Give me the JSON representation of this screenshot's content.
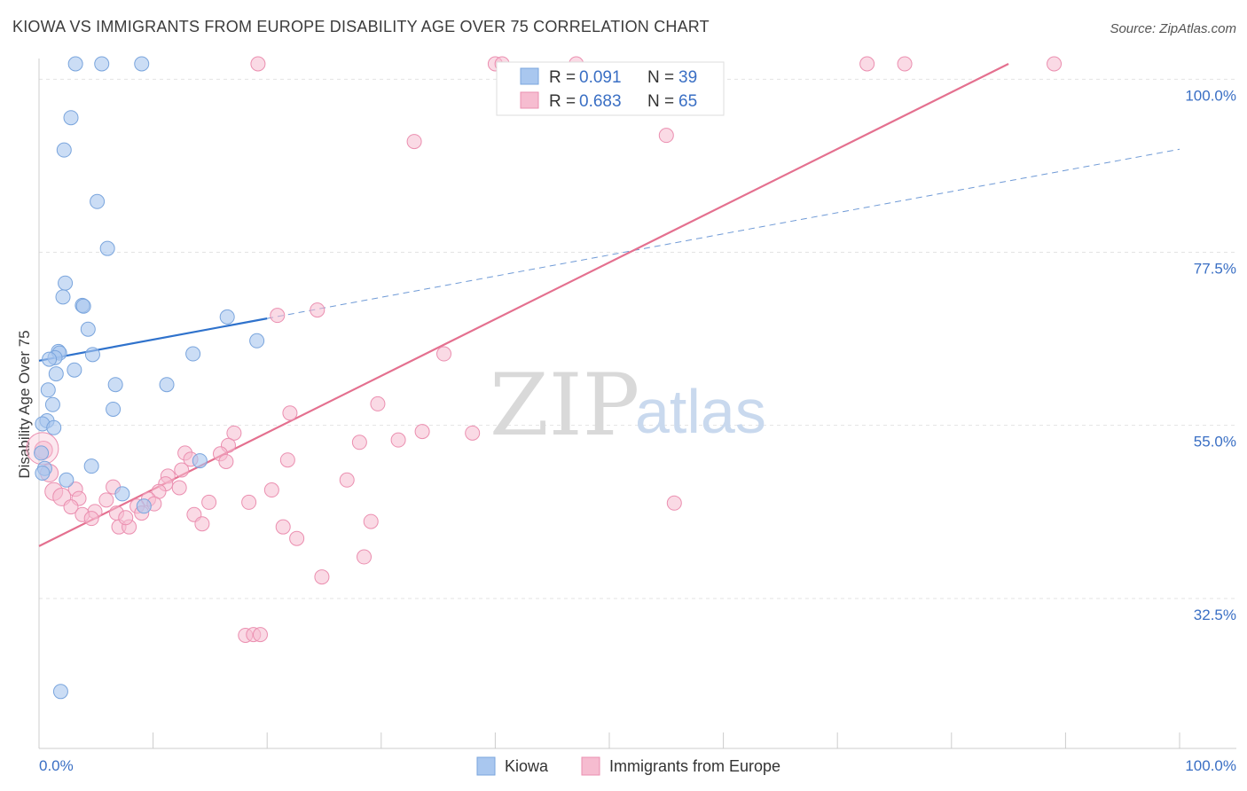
{
  "chart_data": {
    "type": "scatter",
    "title": "KIOWA VS IMMIGRANTS FROM EUROPE DISABILITY AGE OVER 75 CORRELATION CHART",
    "source": "Source: ZipAtlas.com",
    "xlabel": "",
    "ylabel": "Disability Age Over 75",
    "xlim": [
      0,
      100
    ],
    "ylim": [
      13,
      102
    ],
    "x_tick_labels": [
      "0.0%",
      "100.0%"
    ],
    "y_ticks": [
      32.5,
      55.0,
      77.5,
      100.0
    ],
    "y_tick_labels": [
      "32.5%",
      "55.0%",
      "77.5%",
      "100.0%"
    ],
    "watermark": {
      "zip": "ZIP",
      "atlas": "atlas"
    },
    "legend": {
      "stats": [
        {
          "r_label": "R =",
          "r_value": "0.091",
          "n_label": "N =",
          "n_value": "39"
        },
        {
          "r_label": "R =",
          "r_value": "0.683",
          "n_label": "N =",
          "n_value": "65"
        }
      ],
      "entries": [
        "Kiowa",
        "Immigrants from Europe"
      ]
    },
    "colors": {
      "kiowa_fill": "#a9c7ef",
      "kiowa_stroke": "#7aa5dd",
      "kiowa_line": "#2f72cc",
      "europe_fill": "#f6bcd0",
      "europe_stroke": "#eb8fb0",
      "europe_line": "#e4708f"
    },
    "series": [
      {
        "name": "Kiowa",
        "trend": {
          "x": [
            0,
            20
          ],
          "y": [
            63.4,
            68.9
          ],
          "dashed_to_x": 100,
          "dashed_to_y": 90.9
        },
        "points": [
          {
            "x": 3.2,
            "y": 102
          },
          {
            "x": 5.5,
            "y": 102
          },
          {
            "x": 9.0,
            "y": 102
          },
          {
            "x": 2.8,
            "y": 95
          },
          {
            "x": 2.2,
            "y": 90.8
          },
          {
            "x": 5.1,
            "y": 84.1
          },
          {
            "x": 6.0,
            "y": 78.0
          },
          {
            "x": 2.3,
            "y": 73.5
          },
          {
            "x": 2.1,
            "y": 71.7
          },
          {
            "x": 3.8,
            "y": 70.6
          },
          {
            "x": 3.9,
            "y": 70.5
          },
          {
            "x": 16.5,
            "y": 69.1
          },
          {
            "x": 4.3,
            "y": 67.5
          },
          {
            "x": 19.1,
            "y": 66.0
          },
          {
            "x": 1.7,
            "y": 64.6
          },
          {
            "x": 1.8,
            "y": 64.4
          },
          {
            "x": 1.4,
            "y": 63.8
          },
          {
            "x": 0.9,
            "y": 63.6
          },
          {
            "x": 4.7,
            "y": 64.2
          },
          {
            "x": 13.5,
            "y": 64.3
          },
          {
            "x": 3.1,
            "y": 62.2
          },
          {
            "x": 1.5,
            "y": 61.7
          },
          {
            "x": 6.7,
            "y": 60.3
          },
          {
            "x": 11.2,
            "y": 60.3
          },
          {
            "x": 0.8,
            "y": 59.6
          },
          {
            "x": 1.2,
            "y": 57.7
          },
          {
            "x": 6.5,
            "y": 57.1
          },
          {
            "x": 0.7,
            "y": 55.6
          },
          {
            "x": 0.3,
            "y": 55.2
          },
          {
            "x": 1.3,
            "y": 54.7
          },
          {
            "x": 0.2,
            "y": 51.4
          },
          {
            "x": 14.1,
            "y": 50.4
          },
          {
            "x": 4.6,
            "y": 49.7
          },
          {
            "x": 0.5,
            "y": 49.4
          },
          {
            "x": 0.3,
            "y": 48.8
          },
          {
            "x": 2.4,
            "y": 47.9
          },
          {
            "x": 7.3,
            "y": 46.1
          },
          {
            "x": 9.2,
            "y": 44.5
          },
          {
            "x": 1.9,
            "y": 20.4
          }
        ]
      },
      {
        "name": "Immigrants from Europe",
        "trend": {
          "x": [
            0,
            85
          ],
          "y": [
            39.3,
            102
          ]
        },
        "points": [
          {
            "x": 19.2,
            "y": 102
          },
          {
            "x": 40.0,
            "y": 102
          },
          {
            "x": 40.6,
            "y": 102
          },
          {
            "x": 47.1,
            "y": 102
          },
          {
            "x": 72.6,
            "y": 102
          },
          {
            "x": 75.9,
            "y": 102
          },
          {
            "x": 89.0,
            "y": 102
          },
          {
            "x": 32.9,
            "y": 91.9
          },
          {
            "x": 55.0,
            "y": 92.7
          },
          {
            "x": 20.9,
            "y": 69.3
          },
          {
            "x": 24.4,
            "y": 70.0
          },
          {
            "x": 35.5,
            "y": 64.3
          },
          {
            "x": 29.7,
            "y": 57.8
          },
          {
            "x": 22.0,
            "y": 56.6
          },
          {
            "x": 33.6,
            "y": 54.2
          },
          {
            "x": 38.0,
            "y": 54.0
          },
          {
            "x": 17.1,
            "y": 54.0
          },
          {
            "x": 28.1,
            "y": 52.8
          },
          {
            "x": 16.6,
            "y": 52.4
          },
          {
            "x": 0.4,
            "y": 51.8
          },
          {
            "x": 12.8,
            "y": 51.4
          },
          {
            "x": 15.9,
            "y": 51.3
          },
          {
            "x": 13.3,
            "y": 50.6
          },
          {
            "x": 21.8,
            "y": 50.5
          },
          {
            "x": 16.4,
            "y": 50.3
          },
          {
            "x": 12.5,
            "y": 49.2
          },
          {
            "x": 0.9,
            "y": 48.8
          },
          {
            "x": 11.3,
            "y": 48.4
          },
          {
            "x": 27.0,
            "y": 47.9
          },
          {
            "x": 11.1,
            "y": 47.4
          },
          {
            "x": 6.5,
            "y": 47.0
          },
          {
            "x": 12.3,
            "y": 46.9
          },
          {
            "x": 3.2,
            "y": 46.7
          },
          {
            "x": 20.4,
            "y": 46.6
          },
          {
            "x": 1.3,
            "y": 46.4
          },
          {
            "x": 2.0,
            "y": 45.7
          },
          {
            "x": 10.5,
            "y": 46.4
          },
          {
            "x": 3.5,
            "y": 45.5
          },
          {
            "x": 5.9,
            "y": 45.3
          },
          {
            "x": 9.6,
            "y": 45.4
          },
          {
            "x": 14.9,
            "y": 45.0
          },
          {
            "x": 18.4,
            "y": 45.0
          },
          {
            "x": 10.1,
            "y": 44.8
          },
          {
            "x": 8.6,
            "y": 44.5
          },
          {
            "x": 2.8,
            "y": 44.4
          },
          {
            "x": 55.7,
            "y": 44.9
          },
          {
            "x": 4.9,
            "y": 43.8
          },
          {
            "x": 6.8,
            "y": 43.6
          },
          {
            "x": 9.0,
            "y": 43.6
          },
          {
            "x": 3.8,
            "y": 43.4
          },
          {
            "x": 13.6,
            "y": 43.4
          },
          {
            "x": 4.6,
            "y": 42.9
          },
          {
            "x": 29.1,
            "y": 42.5
          },
          {
            "x": 14.3,
            "y": 42.2
          },
          {
            "x": 7.0,
            "y": 41.8
          },
          {
            "x": 7.9,
            "y": 41.8
          },
          {
            "x": 21.4,
            "y": 41.8
          },
          {
            "x": 22.6,
            "y": 40.3
          },
          {
            "x": 28.5,
            "y": 37.9
          },
          {
            "x": 24.8,
            "y": 35.3
          },
          {
            "x": 18.1,
            "y": 27.7
          },
          {
            "x": 18.8,
            "y": 27.8
          },
          {
            "x": 19.4,
            "y": 27.8
          },
          {
            "x": 7.6,
            "y": 43.0
          },
          {
            "x": 31.5,
            "y": 53.1
          }
        ]
      }
    ]
  }
}
